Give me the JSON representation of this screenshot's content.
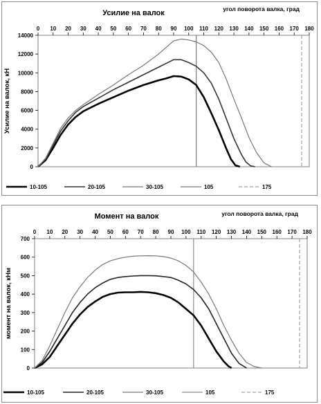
{
  "chart_data": [
    {
      "type": "line",
      "title": "Усилие на валок",
      "x2label": "угол поворота валка, град",
      "ylabel": "Усилие на валок, кН",
      "xlim": [
        0,
        180
      ],
      "ylim": [
        0,
        14000
      ],
      "xticks": [
        0,
        10,
        20,
        30,
        40,
        50,
        60,
        70,
        80,
        90,
        100,
        110,
        120,
        130,
        140,
        150,
        160,
        170,
        180
      ],
      "yticks": [
        0,
        2000,
        4000,
        6000,
        8000,
        10000,
        12000,
        14000
      ],
      "vlines": [
        {
          "name": "105",
          "x": 105,
          "color": "#7a7a7a",
          "dash": false
        },
        {
          "name": "175",
          "x": 175,
          "color": "#a0a0a0",
          "dash": true
        }
      ],
      "series": [
        {
          "name": "10-105",
          "color": "#000000",
          "width": 2.6,
          "x": [
            0,
            5,
            10,
            15,
            20,
            25,
            30,
            40,
            50,
            60,
            70,
            80,
            85,
            90,
            95,
            100,
            105,
            110,
            115,
            120,
            125,
            128,
            131,
            134
          ],
          "y": [
            0,
            700,
            2000,
            3400,
            4500,
            5300,
            5900,
            6700,
            7400,
            8100,
            8700,
            9200,
            9400,
            9650,
            9600,
            9300,
            8700,
            7400,
            5700,
            3900,
            1900,
            800,
            150,
            0
          ]
        },
        {
          "name": "20-105",
          "color": "#333333",
          "width": 1.6,
          "x": [
            0,
            5,
            10,
            15,
            20,
            25,
            30,
            40,
            50,
            60,
            70,
            80,
            85,
            90,
            95,
            100,
            105,
            110,
            115,
            120,
            125,
            130,
            135,
            138,
            141,
            144
          ],
          "y": [
            0,
            800,
            2300,
            3800,
            4900,
            5800,
            6400,
            7300,
            8200,
            9000,
            9800,
            10600,
            11000,
            11400,
            11400,
            11100,
            10700,
            10000,
            8900,
            7200,
            5100,
            3000,
            1300,
            500,
            100,
            0
          ]
        },
        {
          "name": "30-105",
          "color": "#777777",
          "width": 1.2,
          "x": [
            0,
            5,
            10,
            15,
            20,
            25,
            30,
            40,
            50,
            60,
            70,
            80,
            85,
            90,
            95,
            100,
            105,
            110,
            115,
            120,
            125,
            130,
            135,
            140,
            145,
            150,
            155
          ],
          "y": [
            0,
            900,
            2500,
            4100,
            5200,
            6000,
            6600,
            7700,
            8700,
            9800,
            10800,
            12000,
            12700,
            13400,
            13600,
            13500,
            13300,
            12900,
            12200,
            11100,
            9300,
            7200,
            5200,
            3100,
            1500,
            400,
            0
          ]
        }
      ],
      "legend": {
        "placement": "bottom",
        "entries": [
          {
            "label": "10-105",
            "color": "#000000",
            "width": 2.6,
            "dash": false
          },
          {
            "label": "20-105",
            "color": "#333333",
            "width": 1.6,
            "dash": false
          },
          {
            "label": "30-105",
            "color": "#777777",
            "width": 1.2,
            "dash": false
          },
          {
            "label": "105",
            "color": "#7a7a7a",
            "width": 1.2,
            "dash": false
          },
          {
            "label": "175",
            "color": "#a0a0a0",
            "width": 1.2,
            "dash": true
          }
        ]
      }
    },
    {
      "type": "line",
      "title": "Момент на валок",
      "x2label": "угол поворота валка, град",
      "ylabel": "момент на валок, кНм",
      "xlim": [
        0,
        180
      ],
      "ylim": [
        0,
        700
      ],
      "xticks": [
        0,
        10,
        20,
        30,
        40,
        50,
        60,
        70,
        80,
        90,
        100,
        110,
        120,
        130,
        140,
        150,
        160,
        170,
        180
      ],
      "yticks": [
        0,
        100,
        200,
        300,
        400,
        500,
        600,
        700
      ],
      "vlines": [
        {
          "name": "105",
          "x": 105,
          "color": "#8a8a8a",
          "dash": false
        },
        {
          "name": "175",
          "x": 175,
          "color": "#a0a0a0",
          "dash": true
        }
      ],
      "series": [
        {
          "name": "10-105",
          "color": "#000000",
          "width": 2.6,
          "x": [
            0,
            5,
            10,
            15,
            20,
            25,
            30,
            35,
            40,
            45,
            50,
            55,
            60,
            65,
            70,
            75,
            80,
            85,
            90,
            95,
            100,
            105,
            110,
            115,
            120,
            125,
            128,
            130
          ],
          "y": [
            0,
            20,
            60,
            120,
            180,
            240,
            290,
            330,
            360,
            385,
            400,
            408,
            410,
            410,
            412,
            410,
            405,
            395,
            380,
            355,
            320,
            285,
            230,
            160,
            90,
            35,
            10,
            0
          ]
        },
        {
          "name": "20-105",
          "color": "#222222",
          "width": 1.6,
          "x": [
            0,
            5,
            10,
            15,
            20,
            25,
            30,
            35,
            40,
            45,
            50,
            55,
            60,
            65,
            70,
            75,
            80,
            85,
            90,
            95,
            100,
            105,
            110,
            115,
            120,
            125,
            130,
            135,
            140
          ],
          "y": [
            0,
            30,
            90,
            160,
            230,
            300,
            355,
            400,
            435,
            460,
            480,
            490,
            495,
            498,
            500,
            500,
            499,
            495,
            490,
            475,
            455,
            425,
            380,
            320,
            240,
            160,
            80,
            25,
            0
          ]
        },
        {
          "name": "30-105",
          "color": "#777777",
          "width": 1.2,
          "x": [
            0,
            5,
            10,
            15,
            20,
            25,
            30,
            35,
            40,
            45,
            50,
            55,
            60,
            65,
            70,
            75,
            80,
            85,
            90,
            95,
            100,
            105,
            110,
            115,
            120,
            125,
            130,
            135,
            140,
            145,
            150
          ],
          "y": [
            0,
            40,
            120,
            210,
            300,
            380,
            440,
            490,
            530,
            560,
            580,
            592,
            600,
            605,
            607,
            608,
            607,
            603,
            595,
            580,
            555,
            520,
            465,
            400,
            320,
            230,
            150,
            80,
            30,
            8,
            0
          ]
        }
      ],
      "legend": {
        "placement": "bottom",
        "entries": [
          {
            "label": "10-105",
            "color": "#000000",
            "width": 2.6,
            "dash": false
          },
          {
            "label": "20-105",
            "color": "#222222",
            "width": 1.6,
            "dash": false
          },
          {
            "label": "30-105",
            "color": "#777777",
            "width": 1.2,
            "dash": false
          },
          {
            "label": "105",
            "color": "#8a8a8a",
            "width": 1.2,
            "dash": false
          },
          {
            "label": "175",
            "color": "#a0a0a0",
            "width": 1.2,
            "dash": true
          }
        ]
      }
    }
  ]
}
